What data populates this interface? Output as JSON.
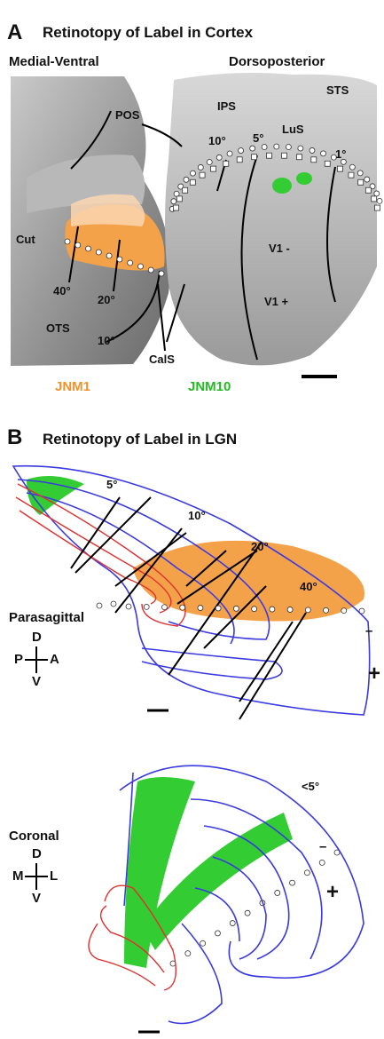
{
  "panel_a": {
    "letter": "A",
    "title": "Retinotopy of Label in Cortex",
    "view_left": "Medial-Ventral",
    "view_right": "Dorsoposterior",
    "sulci": [
      "POS",
      "IPS",
      "STS",
      "LuS",
      "OTS",
      "CalS"
    ],
    "eccentricities": [
      "10°",
      "5°",
      "1°",
      "40°",
      "20°",
      "10°"
    ],
    "cut": "Cut",
    "v1_minus": "V1 -",
    "v1_plus": "V1 +",
    "cases": [
      "JNM1",
      "JNM10"
    ]
  },
  "panel_b": {
    "letter": "B",
    "title": "Retinotopy of Label in LGN",
    "parasagittal": {
      "label": "Parasagittal",
      "eccentricities": [
        "5°",
        "10°",
        "20°",
        "40°"
      ],
      "compass": {
        "up": "D",
        "left": "P",
        "right": "A",
        "down": "V"
      },
      "minus": "–",
      "plus": "+"
    },
    "coronal": {
      "label": "Coronal",
      "eccentricity": "<5°",
      "compass": {
        "up": "D",
        "left": "M",
        "right": "L",
        "down": "V"
      },
      "minus": "–",
      "plus": "+"
    }
  }
}
